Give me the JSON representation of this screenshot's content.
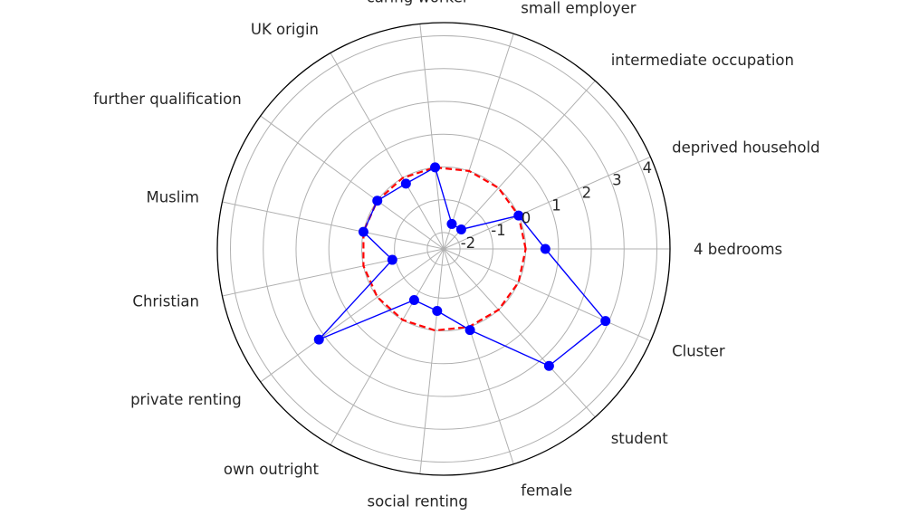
{
  "chart_data": {
    "type": "radar",
    "title": "",
    "categories": [
      "4 bedrooms",
      "deprived household",
      "intermediate occupation",
      "small employer",
      "caring worker",
      "UK origin",
      "further qualification",
      "Muslim",
      "Christian",
      "private renting",
      "own outright",
      "social renting",
      "female",
      "student",
      "Cluster"
    ],
    "series": [
      {
        "name": "",
        "color": "#0000ff",
        "values": [
          0.6,
          0.0,
          -1.7,
          -1.7,
          0.0,
          -0.2,
          0.0,
          0.0,
          -0.9,
          2.2,
          -0.7,
          -0.6,
          0.1,
          2.3,
          2.9
        ]
      },
      {
        "name": "",
        "color": "#ff0000",
        "style": "dashed",
        "values": [
          0,
          0,
          0,
          0,
          0,
          0,
          0,
          0,
          0,
          0,
          0,
          0,
          0,
          0,
          0
        ]
      }
    ],
    "radial_ticks": [
      "-2",
      "-1",
      "0",
      "1",
      "2",
      "3",
      "4"
    ],
    "rlim": [
      -2.5,
      4.4
    ],
    "grid": true,
    "legend": false
  }
}
